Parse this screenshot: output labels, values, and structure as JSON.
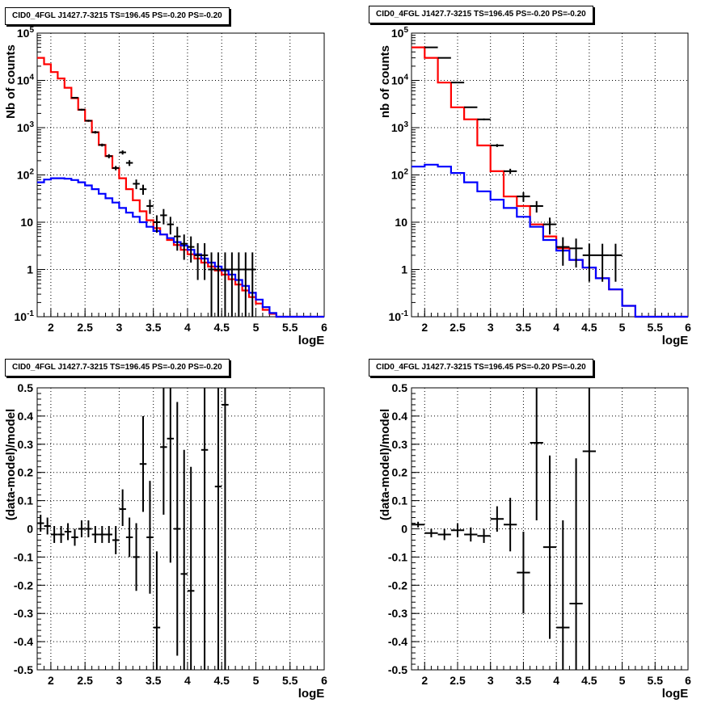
{
  "colors": {
    "data": "#000000",
    "total_model": "#ff0000",
    "component_model": "#0000ff",
    "grid": "#000000"
  },
  "chart_data": [
    {
      "type": "line",
      "title": "CID0_4FGL J1427.7-3215 TS=196.45 PS=-0.20 PS=-0.20",
      "xlabel": "logE",
      "ylabel": "Nb of counts",
      "xlim": [
        1.8,
        6.0
      ],
      "ylim": [
        0.1,
        100000
      ],
      "yscale": "log",
      "grid": true,
      "legend": "none",
      "x_ticks": [
        "2",
        "2.5",
        "3",
        "3.5",
        "4",
        "4.5",
        "5",
        "5.5",
        "6"
      ],
      "y_ticks": [
        "10^-1",
        "1",
        "10",
        "10^2",
        "10^3",
        "10^4",
        "10^5"
      ],
      "series": [
        {
          "role": "total_model",
          "kind": "step",
          "bin_width": 0.1,
          "x": [
            1.8,
            1.9,
            2.0,
            2.1,
            2.2,
            2.3,
            2.4,
            2.5,
            2.6,
            2.7,
            2.8,
            2.9,
            3.0,
            3.1,
            3.2,
            3.3,
            3.4,
            3.5,
            3.6,
            3.7,
            3.8,
            3.9,
            4.0,
            4.1,
            4.2,
            4.3,
            4.4,
            4.5,
            4.6,
            4.7,
            4.8,
            4.9,
            5.0,
            5.1,
            5.2,
            5.3,
            5.4,
            5.5,
            5.6,
            5.7,
            5.8,
            5.9
          ],
          "y": [
            30000,
            22000,
            15000,
            11000,
            7000,
            4200,
            2400,
            1400,
            800,
            430,
            250,
            140,
            85,
            50,
            29,
            17,
            11,
            7.5,
            5.5,
            4.2,
            3.3,
            2.6,
            2.1,
            1.7,
            1.4,
            1.15,
            0.95,
            0.78,
            0.62,
            0.48,
            0.36,
            0.26,
            0.19,
            0.14,
            0.115,
            0.1,
            0.1,
            0.1,
            0.1,
            0.1,
            0.1,
            0.1
          ]
        },
        {
          "role": "component_model",
          "kind": "step",
          "bin_width": 0.1,
          "x": [
            1.8,
            1.9,
            2.0,
            2.1,
            2.2,
            2.3,
            2.4,
            2.5,
            2.6,
            2.7,
            2.8,
            2.9,
            3.0,
            3.1,
            3.2,
            3.3,
            3.4,
            3.5,
            3.6,
            3.7,
            3.8,
            3.9,
            4.0,
            4.1,
            4.2,
            4.3,
            4.4,
            4.5,
            4.6,
            4.7,
            4.8,
            4.9,
            5.0,
            5.1,
            5.2,
            5.3,
            5.4,
            5.5,
            5.6,
            5.7,
            5.8,
            5.9
          ],
          "y": [
            70,
            80,
            85,
            85,
            83,
            78,
            70,
            60,
            50,
            40,
            32,
            26,
            20,
            16,
            13,
            10,
            8,
            6.5,
            5.5,
            4.6,
            3.8,
            3.2,
            2.6,
            2.1,
            1.7,
            1.4,
            1.15,
            0.95,
            0.78,
            0.6,
            0.45,
            0.32,
            0.23,
            0.16,
            0.12,
            0.1,
            0.1,
            0.1,
            0.1,
            0.1,
            0.1,
            0.1
          ]
        },
        {
          "role": "data",
          "kind": "errorbar",
          "x_half_width": 0.05,
          "x": [
            2.35,
            2.45,
            2.55,
            2.65,
            2.75,
            2.85,
            2.95,
            3.05,
            3.15,
            3.25,
            3.35,
            3.45,
            3.55,
            3.65,
            3.75,
            3.85,
            3.95,
            4.05,
            4.15,
            4.25,
            4.35,
            4.45,
            4.55,
            4.65,
            4.75,
            4.85,
            4.95
          ],
          "y": [
            4300,
            2400,
            1400,
            800,
            430,
            250,
            140,
            300,
            180,
            65,
            50,
            22,
            10,
            14,
            9,
            5,
            3.5,
            3,
            2,
            2,
            1,
            1,
            1,
            1,
            1,
            1,
            1
          ],
          "ylo": [
            4150,
            2300,
            1330,
            750,
            400,
            225,
            125,
            270,
            155,
            50,
            38,
            15,
            6,
            9,
            5.5,
            2.5,
            1.6,
            1.4,
            0.6,
            0.6,
            0.1,
            0.1,
            0.1,
            0.1,
            0.1,
            0.1,
            0.1
          ],
          "yhi": [
            4450,
            2500,
            1470,
            850,
            460,
            275,
            155,
            330,
            205,
            80,
            62,
            30,
            14,
            19,
            13,
            8,
            5.5,
            5,
            3.6,
            3.6,
            2.3,
            2.3,
            2.3,
            2.3,
            2.3,
            2.3,
            2.3
          ]
        }
      ]
    },
    {
      "type": "line",
      "title": "CID0_4FGL J1427.7-3215 TS=196.45 PS=-0.20 PS=-0.20",
      "xlabel": "logE",
      "ylabel": "nb of counts",
      "xlim": [
        1.8,
        6.0
      ],
      "ylim": [
        0.1,
        100000
      ],
      "yscale": "log",
      "grid": true,
      "legend": "none",
      "x_ticks": [
        "2",
        "2.5",
        "3",
        "3.5",
        "4",
        "4.5",
        "5",
        "5.5",
        "6"
      ],
      "y_ticks": [
        "10^-1",
        "1",
        "10",
        "10^2",
        "10^3",
        "10^4",
        "10^5"
      ],
      "series": [
        {
          "role": "total_model",
          "kind": "step",
          "bin_width": 0.2,
          "x": [
            1.8,
            2.0,
            2.2,
            2.4,
            2.6,
            2.8,
            3.0,
            3.2,
            3.4,
            3.6,
            3.8,
            4.0,
            4.2,
            4.4,
            4.6,
            4.8,
            5.0,
            5.2,
            5.4,
            5.6,
            5.8
          ],
          "y": [
            50000,
            30000,
            9000,
            2700,
            1500,
            420,
            120,
            35,
            22,
            9,
            5,
            2.8,
            1.6,
            1.1,
            0.65,
            0.38,
            0.17,
            0.1,
            0.1,
            0.1,
            0.1
          ]
        },
        {
          "role": "component_model",
          "kind": "step",
          "bin_width": 0.2,
          "x": [
            1.8,
            2.0,
            2.2,
            2.4,
            2.6,
            2.8,
            3.0,
            3.2,
            3.4,
            3.6,
            3.8,
            4.0,
            4.2,
            4.4,
            4.6,
            4.8,
            5.0,
            5.2,
            5.4,
            5.6,
            5.8
          ],
          "y": [
            150,
            165,
            150,
            110,
            70,
            45,
            30,
            20,
            13,
            8,
            4.2,
            2.5,
            1.6,
            1.1,
            0.65,
            0.38,
            0.17,
            0.1,
            0.1,
            0.1,
            0.1
          ]
        },
        {
          "role": "data",
          "kind": "errorbar",
          "x_half_width": 0.1,
          "x": [
            2.1,
            2.3,
            2.5,
            2.7,
            2.9,
            3.1,
            3.3,
            3.5,
            3.7,
            3.9,
            4.1,
            4.3,
            4.5,
            4.7,
            4.9
          ],
          "y": [
            50000,
            30000,
            9000,
            2700,
            1500,
            420,
            120,
            35,
            22,
            9,
            3,
            2.8,
            2,
            2,
            2
          ],
          "ylo": [
            49000,
            29500,
            8800,
            2620,
            1440,
            390,
            105,
            27,
            16,
            5.5,
            1.2,
            1.1,
            0.55,
            0.55,
            0.55
          ],
          "yhi": [
            51000,
            30500,
            9200,
            2780,
            1560,
            450,
            135,
            43,
            28,
            12.5,
            4.8,
            4.5,
            3.5,
            3.5,
            3.5
          ]
        }
      ]
    },
    {
      "type": "scatter",
      "title": "CID0_4FGL J1427.7-3215 TS=196.45 PS=-0.20 PS=-0.20",
      "xlabel": "logE",
      "ylabel": "(data-model)/model",
      "xlim": [
        1.8,
        6.0
      ],
      "ylim": [
        -0.5,
        0.5
      ],
      "grid": true,
      "legend": "none",
      "x_ticks": [
        "2",
        "2.5",
        "3",
        "3.5",
        "4",
        "4.5",
        "5",
        "5.5",
        "6"
      ],
      "y_ticks": [
        "-0.5",
        "-0.4",
        "-0.3",
        "-0.2",
        "-0.1",
        "0",
        "0.1",
        "0.2",
        "0.3",
        "0.4",
        "0.5"
      ],
      "series": [
        {
          "role": "data",
          "kind": "errorbar",
          "x_half_width": 0.05,
          "x": [
            1.85,
            1.95,
            2.05,
            2.15,
            2.25,
            2.35,
            2.45,
            2.55,
            2.65,
            2.75,
            2.85,
            2.95,
            3.05,
            3.15,
            3.25,
            3.35,
            3.45,
            3.55,
            3.65,
            3.75,
            3.85,
            3.95,
            4.05,
            4.25,
            4.45,
            4.55
          ],
          "y": [
            0.02,
            0.01,
            -0.02,
            -0.02,
            -0.01,
            -0.03,
            0.0,
            0.0,
            -0.02,
            -0.02,
            -0.02,
            -0.04,
            0.07,
            -0.03,
            -0.1,
            0.23,
            -0.03,
            -0.35,
            0.29,
            0.32,
            0.0,
            -0.16,
            -0.22,
            0.28,
            0.15,
            0.44
          ],
          "ylo": [
            -0.01,
            -0.02,
            -0.05,
            -0.05,
            -0.04,
            -0.06,
            -0.03,
            -0.03,
            -0.05,
            -0.05,
            -0.05,
            -0.09,
            0.01,
            -0.1,
            -0.22,
            0.06,
            -0.23,
            -0.62,
            0.05,
            -0.12,
            -0.45,
            -0.6,
            -0.65,
            -0.5,
            -0.6,
            -0.55
          ],
          "yhi": [
            0.05,
            0.04,
            0.01,
            0.01,
            0.02,
            0.0,
            0.03,
            0.03,
            0.01,
            0.01,
            0.01,
            0.01,
            0.14,
            0.04,
            0.02,
            0.4,
            0.17,
            -0.08,
            0.53,
            0.55,
            0.45,
            0.28,
            0.22,
            0.55,
            0.6,
            0.55
          ]
        }
      ]
    },
    {
      "type": "scatter",
      "title": "CID0_4FGL J1427.7-3215 TS=196.45 PS=-0.20 PS=-0.20",
      "xlabel": "logE",
      "ylabel": "(data-model)/model",
      "xlim": [
        1.8,
        6.0
      ],
      "ylim": [
        -0.5,
        0.5
      ],
      "grid": true,
      "legend": "none",
      "x_ticks": [
        "2",
        "2.5",
        "3",
        "3.5",
        "4",
        "4.5",
        "5",
        "5.5",
        "6"
      ],
      "y_ticks": [
        "-0.5",
        "-0.4",
        "-0.3",
        "-0.2",
        "-0.1",
        "0",
        "0.1",
        "0.2",
        "0.3",
        "0.4",
        "0.5"
      ],
      "series": [
        {
          "role": "data",
          "kind": "errorbar",
          "x_half_width": 0.1,
          "x": [
            1.9,
            2.1,
            2.3,
            2.5,
            2.7,
            2.9,
            3.1,
            3.3,
            3.5,
            3.7,
            3.9,
            4.1,
            4.3,
            4.5
          ],
          "y": [
            0.015,
            -0.015,
            -0.02,
            -0.005,
            -0.02,
            -0.025,
            0.035,
            0.015,
            -0.155,
            0.305,
            -0.065,
            -0.35,
            -0.265,
            0.275
          ],
          "ylo": [
            0.005,
            -0.03,
            -0.04,
            -0.03,
            -0.045,
            -0.05,
            -0.01,
            -0.08,
            -0.3,
            0.03,
            -0.39,
            -0.7,
            -0.78,
            -0.55
          ],
          "yhi": [
            0.025,
            0.0,
            0.0,
            0.02,
            0.005,
            0.0,
            0.08,
            0.11,
            -0.01,
            0.6,
            0.26,
            0.03,
            0.25,
            0.6
          ]
        }
      ]
    }
  ]
}
